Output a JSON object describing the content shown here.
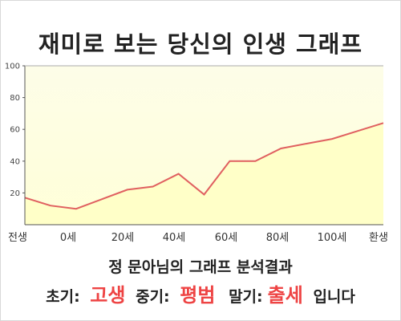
{
  "title": "재미로 보는 당신의 인생 그래프",
  "result": {
    "heading": "정 문아님의 그래프 분석결과",
    "early_label": "초기:",
    "early_value": "고생",
    "mid_label": "중기:",
    "mid_value": "평범",
    "late_label": "말기:",
    "late_value": "출세",
    "suffix": "입니다"
  },
  "colors": {
    "line": "#e06060",
    "fill": "#ffffc8",
    "fill_top": "#fdfde8",
    "highlight": "#ee4444"
  },
  "chart_data": {
    "type": "area",
    "title": "",
    "xlabel": "",
    "ylabel": "",
    "ylim": [
      0,
      100
    ],
    "yticks": [
      20,
      40,
      60,
      80,
      100
    ],
    "xticks": [
      "전생",
      "0세",
      "20세",
      "40세",
      "60세",
      "80세",
      "100세",
      "환생"
    ],
    "grid": false,
    "series": [
      {
        "values": [
          17,
          12,
          10,
          16,
          22,
          24,
          32,
          19,
          40,
          40,
          48,
          51,
          54,
          59,
          64
        ]
      }
    ]
  }
}
